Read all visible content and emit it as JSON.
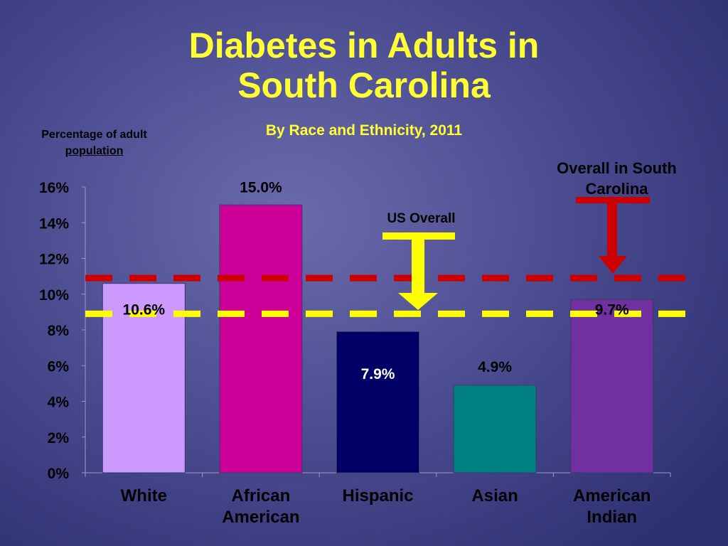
{
  "slide": {
    "title_line1": "Diabetes in Adults in",
    "title_line2": "South Carolina",
    "subtitle": "By Race and Ethnicity, 2011",
    "ylabel_line1": "Percentage of adult",
    "ylabel_line2": "population"
  },
  "annotations": {
    "us_overall": "US Overall",
    "sc_overall_line1": "Overall in South",
    "sc_overall_line2": "Carolina"
  },
  "chart_data": {
    "type": "bar",
    "title": "Diabetes in Adults in South Carolina",
    "subtitle": "By Race and Ethnicity, 2011",
    "ylabel": "Percentage of adult population",
    "xlabel": "",
    "ylim": [
      0,
      16
    ],
    "yticks": [
      "0%",
      "2%",
      "4%",
      "6%",
      "8%",
      "10%",
      "12%",
      "14%",
      "16%"
    ],
    "categories": [
      [
        "White"
      ],
      [
        "African",
        "American"
      ],
      [
        "Hispanic"
      ],
      [
        "Asian"
      ],
      [
        "American",
        "Indian"
      ]
    ],
    "values": [
      10.6,
      15.0,
      7.9,
      4.9,
      9.7
    ],
    "data_labels": [
      "10.6%",
      "15.0%",
      "7.9%",
      "4.9%",
      "9.7%"
    ],
    "bar_colors": [
      "#cc99ff",
      "#cc0099",
      "#000066",
      "#008080",
      "#7030a0"
    ],
    "label_colors": [
      "#000000",
      "#000000",
      "#ffffff",
      "#000000",
      "#000000"
    ],
    "reference_lines": [
      {
        "name": "Overall in South Carolina",
        "value": 10.9,
        "color": "#cc0000"
      },
      {
        "name": "US Overall",
        "value": 8.9,
        "color": "#ffff00"
      }
    ],
    "grid": false
  }
}
